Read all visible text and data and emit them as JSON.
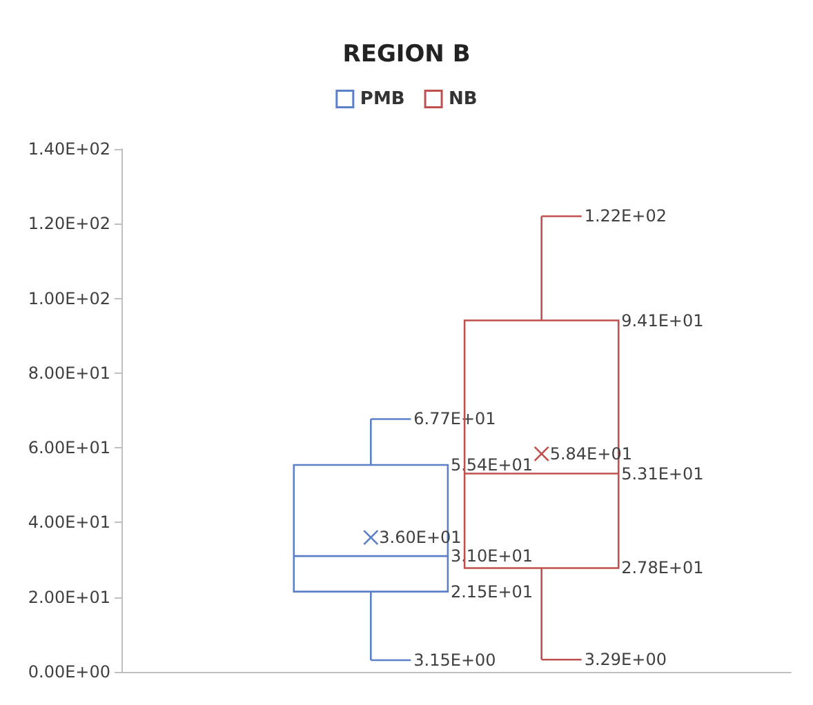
{
  "chart_data": {
    "type": "box",
    "title": "REGION B",
    "categories": [
      null
    ],
    "series": [
      {
        "name": "PMB",
        "color": "#5b80c8",
        "boxes": [
          {
            "low": 3.15,
            "q1": 21.5,
            "median": 31.0,
            "q3": 55.4,
            "high": 67.7,
            "mean": 36.0
          }
        ],
        "value_labels": [
          [
            "3.15E+00",
            "2.15E+01",
            "3.10E+01",
            "5.54E+01",
            "6.77E+01",
            "3.60E+01"
          ]
        ]
      },
      {
        "name": "NB",
        "color": "#c0504d",
        "boxes": [
          {
            "low": 3.29,
            "q1": 27.8,
            "median": 53.1,
            "q3": 94.1,
            "high": 122,
            "mean": 58.4
          }
        ],
        "value_labels": [
          [
            "3.29E+00",
            "2.78E+01",
            "5.31E+01",
            "9.41E+01",
            "1.22E+02",
            "5.84E+01"
          ]
        ]
      }
    ],
    "ylim": [
      0,
      140
    ],
    "yticks": [
      {
        "value": 0,
        "label": "0.00E+00"
      },
      {
        "value": 20,
        "label": "2.00E+01"
      },
      {
        "value": 40,
        "label": "4.00E+01"
      },
      {
        "value": 60,
        "label": "6.00E+01"
      },
      {
        "value": 80,
        "label": "8.00E+01"
      },
      {
        "value": 100,
        "label": "1.00E+02"
      },
      {
        "value": 120,
        "label": "1.20E+02"
      },
      {
        "value": 140,
        "label": "1.40E+02"
      }
    ],
    "grid": false,
    "legend": "top",
    "tick_labels": "y"
  }
}
